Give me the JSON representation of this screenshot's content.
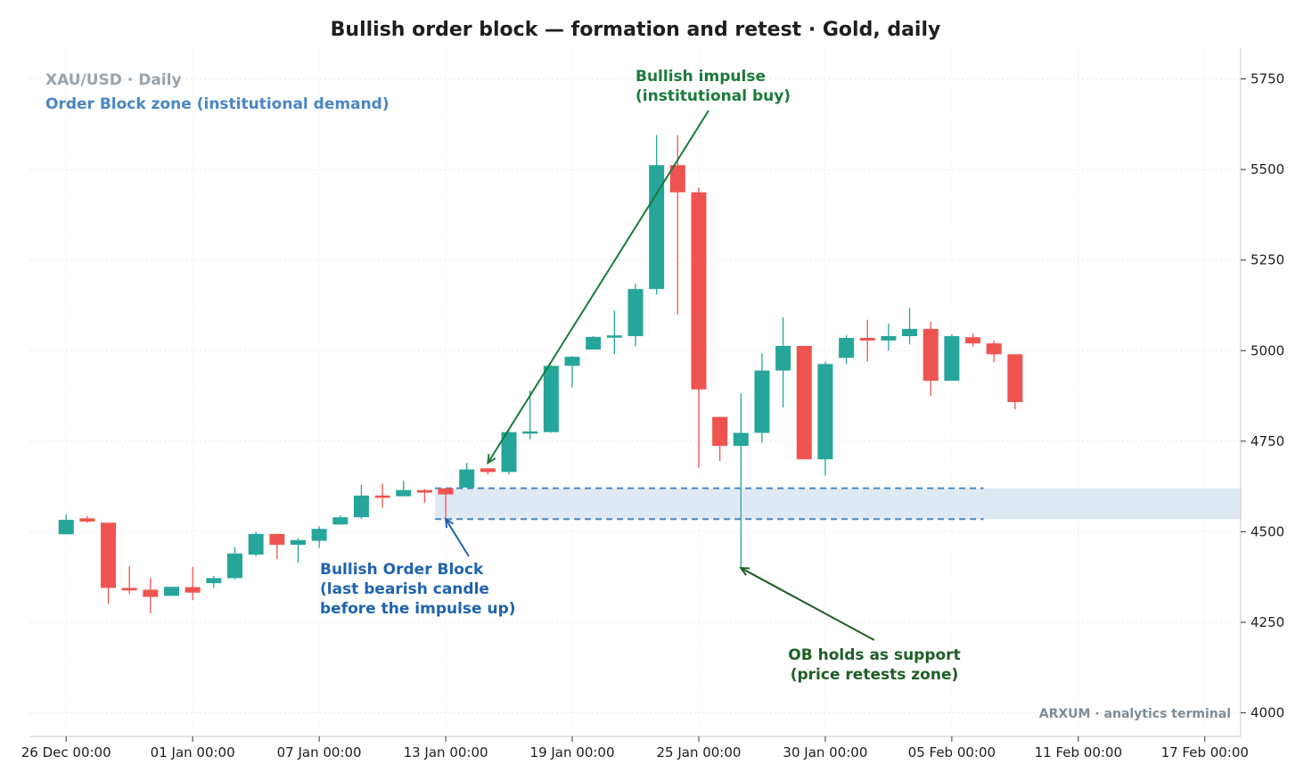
{
  "chart_data": {
    "type": "candlestick",
    "title": "Bullish order block — formation and retest  ·  Gold, daily",
    "symbol_label": "XAU/USD · Daily",
    "zone_label": "Order Block zone (institutional demand)",
    "watermark": "ARXUM · analytics terminal",
    "y_ticks": [
      4000,
      4250,
      4500,
      4750,
      5000,
      5250,
      5500,
      5750
    ],
    "ylim": [
      3935,
      5835
    ],
    "x_ticks": [
      {
        "day": 0,
        "label": "26 Dec 00:00"
      },
      {
        "day": 6,
        "label": "01 Jan 00:00"
      },
      {
        "day": 12,
        "label": "07 Jan 00:00"
      },
      {
        "day": 18,
        "label": "13 Jan 00:00"
      },
      {
        "day": 24,
        "label": "19 Jan 00:00"
      },
      {
        "day": 30,
        "label": "25 Jan 00:00"
      },
      {
        "day": 36,
        "label": "30 Jan 00:00"
      },
      {
        "day": 42,
        "label": "05 Feb 00:00"
      },
      {
        "day": 48,
        "label": "11 Feb 00:00"
      },
      {
        "day": 54,
        "label": "17 Feb 00:00"
      }
    ],
    "xlim": [
      -1.7,
      55.7
    ],
    "candles": [
      {
        "day": 0,
        "open": 4493,
        "high": 4548,
        "low": 4493,
        "close": 4533
      },
      {
        "day": 1,
        "open": 4537,
        "high": 4543,
        "low": 4525,
        "close": 4528
      },
      {
        "day": 2,
        "open": 4525,
        "high": 4525,
        "low": 4300,
        "close": 4345
      },
      {
        "day": 3,
        "open": 4345,
        "high": 4405,
        "low": 4328,
        "close": 4338
      },
      {
        "day": 4,
        "open": 4340,
        "high": 4373,
        "low": 4275,
        "close": 4320
      },
      {
        "day": 5,
        "open": 4323,
        "high": 4348,
        "low": 4323,
        "close": 4348
      },
      {
        "day": 6,
        "open": 4347,
        "high": 4403,
        "low": 4311,
        "close": 4332
      },
      {
        "day": 7,
        "open": 4358,
        "high": 4378,
        "low": 4345,
        "close": 4372
      },
      {
        "day": 8,
        "open": 4372,
        "high": 4458,
        "low": 4368,
        "close": 4440
      },
      {
        "day": 9,
        "open": 4437,
        "high": 4500,
        "low": 4432,
        "close": 4494
      },
      {
        "day": 10,
        "open": 4494,
        "high": 4494,
        "low": 4424,
        "close": 4464
      },
      {
        "day": 11,
        "open": 4464,
        "high": 4482,
        "low": 4414,
        "close": 4477
      },
      {
        "day": 12,
        "open": 4475,
        "high": 4515,
        "low": 4455,
        "close": 4508
      },
      {
        "day": 13,
        "open": 4520,
        "high": 4545,
        "low": 4520,
        "close": 4540
      },
      {
        "day": 14,
        "open": 4540,
        "high": 4630,
        "low": 4536,
        "close": 4600
      },
      {
        "day": 15,
        "open": 4600,
        "high": 4633,
        "low": 4566,
        "close": 4596
      },
      {
        "day": 16,
        "open": 4598,
        "high": 4641,
        "low": 4598,
        "close": 4615
      },
      {
        "day": 17,
        "open": 4615,
        "high": 4618,
        "low": 4580,
        "close": 4608
      },
      {
        "day": 18,
        "open": 4620,
        "high": 4620,
        "low": 4535,
        "close": 4603
      },
      {
        "day": 19,
        "open": 4622,
        "high": 4690,
        "low": 4622,
        "close": 4672
      },
      {
        "day": 20,
        "open": 4675,
        "high": 4675,
        "low": 4658,
        "close": 4665
      },
      {
        "day": 21,
        "open": 4665,
        "high": 4778,
        "low": 4658,
        "close": 4775
      },
      {
        "day": 22,
        "open": 4775,
        "high": 4890,
        "low": 4755,
        "close": 4777
      },
      {
        "day": 23,
        "open": 4775,
        "high": 4960,
        "low": 4773,
        "close": 4958
      },
      {
        "day": 24,
        "open": 4958,
        "high": 4985,
        "low": 4898,
        "close": 4983
      },
      {
        "day": 25,
        "open": 5003,
        "high": 5040,
        "low": 5003,
        "close": 5038
      },
      {
        "day": 26,
        "open": 5040,
        "high": 5110,
        "low": 4990,
        "close": 5042
      },
      {
        "day": 27,
        "open": 5040,
        "high": 5185,
        "low": 5012,
        "close": 5170
      },
      {
        "day": 28,
        "open": 5170,
        "high": 5595,
        "low": 5155,
        "close": 5512
      },
      {
        "day": 29,
        "open": 5512,
        "high": 5595,
        "low": 5100,
        "close": 5437
      },
      {
        "day": 30,
        "open": 5437,
        "high": 5450,
        "low": 4677,
        "close": 4893
      },
      {
        "day": 31,
        "open": 4817,
        "high": 4817,
        "low": 4695,
        "close": 4737
      },
      {
        "day": 32,
        "open": 4737,
        "high": 4882,
        "low": 4400,
        "close": 4773
      },
      {
        "day": 33,
        "open": 4773,
        "high": 4993,
        "low": 4745,
        "close": 4945
      },
      {
        "day": 34,
        "open": 4945,
        "high": 5092,
        "low": 4843,
        "close": 5013
      },
      {
        "day": 35,
        "open": 5013,
        "high": 5013,
        "low": 4700,
        "close": 4700
      },
      {
        "day": 36,
        "open": 4700,
        "high": 4970,
        "low": 4655,
        "close": 4963
      },
      {
        "day": 37,
        "open": 4980,
        "high": 5043,
        "low": 4963,
        "close": 5035
      },
      {
        "day": 38,
        "open": 5035,
        "high": 5085,
        "low": 4970,
        "close": 5028
      },
      {
        "day": 39,
        "open": 5028,
        "high": 5075,
        "low": 5000,
        "close": 5040
      },
      {
        "day": 40,
        "open": 5040,
        "high": 5118,
        "low": 5017,
        "close": 5060
      },
      {
        "day": 41,
        "open": 5060,
        "high": 5080,
        "low": 4875,
        "close": 4917
      },
      {
        "day": 42,
        "open": 4917,
        "high": 5045,
        "low": 4917,
        "close": 5040
      },
      {
        "day": 43,
        "open": 5037,
        "high": 5048,
        "low": 5010,
        "close": 5020
      },
      {
        "day": 44,
        "open": 5020,
        "high": 5028,
        "low": 4968,
        "close": 4990
      },
      {
        "day": 45,
        "open": 4990,
        "high": 4990,
        "low": 4838,
        "close": 4858
      }
    ],
    "order_block_zone": {
      "low": 4535,
      "high": 4620,
      "start_day": 18,
      "dash_end_day": 43
    },
    "annotations": [
      {
        "text": [
          "Bullish impulse",
          "(institutional buy)"
        ],
        "color": "#1a7a3a",
        "arrow_to": {
          "day": 20,
          "price": 4690
        }
      },
      {
        "text": [
          "Bullish Order Block",
          "(last bearish candle",
          "before the impulse up)"
        ],
        "color": "#1e63b0",
        "arrow_to": {
          "day": 18,
          "price": 4535
        }
      },
      {
        "text": [
          "OB holds as support",
          "(price retests zone)"
        ],
        "color": "#1e5e24",
        "arrow_to": {
          "day": 32,
          "price": 4400
        }
      }
    ],
    "colors": {
      "up": "#26a69a",
      "down": "#ef5350",
      "zone_fill": "#dfe9f4",
      "zone_dash": "#4a86c5"
    },
    "grid": true
  }
}
